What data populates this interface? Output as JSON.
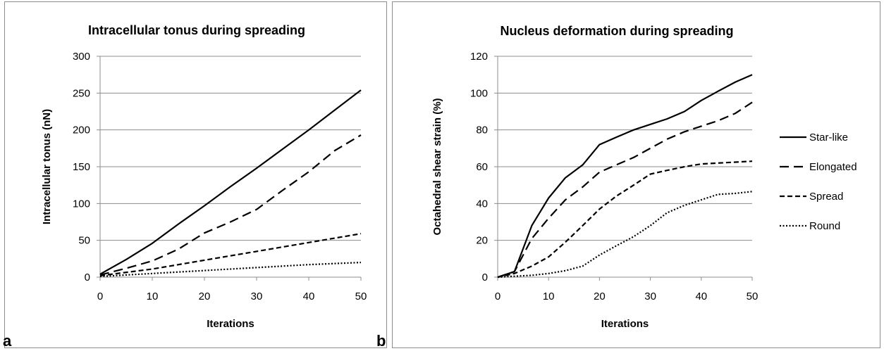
{
  "panels": {
    "a_letter": "a",
    "b_letter": "b"
  },
  "legend": {
    "items": [
      {
        "label": "Star-like",
        "dash": "solid"
      },
      {
        "label": "Elongated",
        "dash": "long-dash"
      },
      {
        "label": "Spread",
        "dash": "short-dash"
      },
      {
        "label": "Round",
        "dash": "dotted"
      }
    ]
  },
  "chart_data": [
    {
      "type": "line",
      "title": "Intracellular tonus during spreading",
      "xlabel": "Iterations",
      "ylabel": "Intracellular tonus (nN)",
      "xlim": [
        0,
        50
      ],
      "ylim": [
        0,
        300
      ],
      "xticks": [
        0,
        10,
        20,
        30,
        40,
        50
      ],
      "yticks": [
        0,
        50,
        100,
        150,
        200,
        250,
        300
      ],
      "grid": "horizontal",
      "series": [
        {
          "name": "Star-like",
          "dash": "solid",
          "points": [
            [
              0,
              4
            ],
            [
              5,
              24
            ],
            [
              10,
              46
            ],
            [
              15,
              72
            ],
            [
              20,
              97
            ],
            [
              25,
              123
            ],
            [
              30,
              148
            ],
            [
              35,
              174
            ],
            [
              40,
              200
            ],
            [
              45,
              227
            ],
            [
              50,
              254
            ]
          ]
        },
        {
          "name": "Elongated",
          "dash": "long-dash",
          "points": [
            [
              0,
              3
            ],
            [
              5,
              12
            ],
            [
              10,
              22
            ],
            [
              15,
              38
            ],
            [
              20,
              60
            ],
            [
              25,
              75
            ],
            [
              30,
              92
            ],
            [
              35,
              118
            ],
            [
              40,
              143
            ],
            [
              45,
              172
            ],
            [
              50,
              193
            ]
          ]
        },
        {
          "name": "Spread",
          "dash": "short-dash",
          "points": [
            [
              0,
              2
            ],
            [
              10,
              11
            ],
            [
              20,
              23
            ],
            [
              30,
              35
            ],
            [
              40,
              47
            ],
            [
              50,
              59
            ]
          ]
        },
        {
          "name": "Round",
          "dash": "dotted",
          "points": [
            [
              0,
              1
            ],
            [
              10,
              5
            ],
            [
              20,
              9
            ],
            [
              30,
              13
            ],
            [
              40,
              17
            ],
            [
              50,
              20
            ]
          ]
        }
      ]
    },
    {
      "type": "line",
      "title": "Nucleus deformation during spreading",
      "xlabel": "Iterations",
      "ylabel": "Octahedral shear strain (%)",
      "xlim": [
        0,
        50
      ],
      "ylim": [
        0,
        120
      ],
      "xticks": [
        0,
        10,
        20,
        30,
        40,
        50
      ],
      "yticks": [
        0,
        20,
        40,
        60,
        80,
        100,
        120
      ],
      "grid": "horizontal",
      "legend": "right",
      "series": [
        {
          "name": "Star-like",
          "dash": "solid",
          "points": [
            [
              0,
              0
            ],
            [
              3.3,
              3
            ],
            [
              6.7,
              28
            ],
            [
              10,
              43
            ],
            [
              13.3,
              54
            ],
            [
              16.7,
              61
            ],
            [
              20,
              72
            ],
            [
              23.3,
              76
            ],
            [
              26.7,
              80
            ],
            [
              30,
              83
            ],
            [
              33.3,
              86
            ],
            [
              36.7,
              90
            ],
            [
              40,
              96
            ],
            [
              43.3,
              101
            ],
            [
              46.7,
              106
            ],
            [
              50,
              110
            ]
          ]
        },
        {
          "name": "Elongated",
          "dash": "long-dash",
          "points": [
            [
              0,
              0
            ],
            [
              3.3,
              3
            ],
            [
              6.7,
              21
            ],
            [
              10,
              32
            ],
            [
              13.3,
              42
            ],
            [
              16.7,
              49
            ],
            [
              20,
              57
            ],
            [
              23.3,
              61
            ],
            [
              26.7,
              65
            ],
            [
              30,
              70
            ],
            [
              33.3,
              75
            ],
            [
              36.7,
              79
            ],
            [
              40,
              82
            ],
            [
              43.3,
              85
            ],
            [
              46.7,
              89
            ],
            [
              50,
              95
            ]
          ]
        },
        {
          "name": "Spread",
          "dash": "short-dash",
          "points": [
            [
              0,
              0
            ],
            [
              3.3,
              2
            ],
            [
              6.7,
              6
            ],
            [
              10,
              11
            ],
            [
              13.3,
              19
            ],
            [
              16.7,
              28
            ],
            [
              20,
              37
            ],
            [
              23.3,
              44
            ],
            [
              26.7,
              50
            ],
            [
              30,
              56
            ],
            [
              33.3,
              58
            ],
            [
              36.7,
              60
            ],
            [
              40,
              61.5
            ],
            [
              43.3,
              62
            ],
            [
              46.7,
              62.5
            ],
            [
              50,
              63
            ]
          ]
        },
        {
          "name": "Round",
          "dash": "dotted",
          "points": [
            [
              0,
              0
            ],
            [
              3.3,
              0.5
            ],
            [
              6.7,
              1
            ],
            [
              10,
              2
            ],
            [
              13.3,
              3.5
            ],
            [
              16.7,
              6
            ],
            [
              20,
              12
            ],
            [
              23.3,
              17
            ],
            [
              26.7,
              22
            ],
            [
              30,
              28
            ],
            [
              33.3,
              35
            ],
            [
              36.7,
              39
            ],
            [
              40,
              42
            ],
            [
              43.3,
              45
            ],
            [
              46.7,
              45.5
            ],
            [
              50,
              46.5
            ]
          ]
        }
      ]
    }
  ]
}
